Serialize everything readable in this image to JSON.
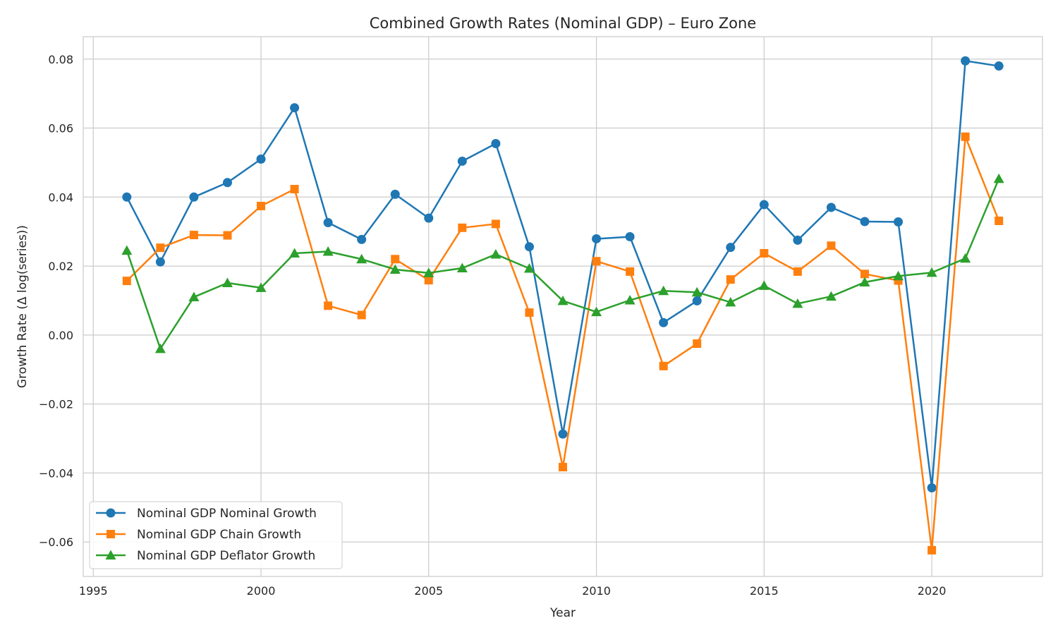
{
  "chart_data": {
    "type": "line",
    "title": "Combined Growth Rates (Nominal GDP) – Euro Zone",
    "xlabel": "Year",
    "ylabel": "Growth Rate (Δ log(series))",
    "xlim": [
      1994.7,
      2023.3
    ],
    "ylim": [
      -0.07,
      0.0865
    ],
    "xticks": [
      1995,
      2000,
      2005,
      2010,
      2015,
      2020
    ],
    "yticks": [
      -0.06,
      -0.04,
      -0.02,
      0.0,
      0.02,
      0.04,
      0.06,
      0.08
    ],
    "ytick_labels": [
      "−0.06",
      "−0.04",
      "−0.02",
      "0.00",
      "0.02",
      "0.04",
      "0.06",
      "0.08"
    ],
    "grid": true,
    "legend_position": "lower-left",
    "x": [
      1996,
      1997,
      1998,
      1999,
      2000,
      2001,
      2002,
      2003,
      2004,
      2005,
      2006,
      2007,
      2008,
      2009,
      2010,
      2011,
      2012,
      2013,
      2014,
      2015,
      2016,
      2017,
      2018,
      2019,
      2020,
      2021,
      2022
    ],
    "series": [
      {
        "name": "Nominal GDP Nominal Growth",
        "color": "#1f77b4",
        "marker": "circle",
        "values": [
          0.04,
          0.0212,
          0.04,
          0.0442,
          0.051,
          0.0659,
          0.0326,
          0.0277,
          0.0408,
          0.0339,
          0.0504,
          0.0555,
          0.0256,
          -0.0287,
          0.0279,
          0.0285,
          0.0036,
          0.0099,
          0.0254,
          0.0378,
          0.0275,
          0.037,
          0.0329,
          0.0328,
          -0.0443,
          0.0795,
          0.078
        ]
      },
      {
        "name": "Nominal GDP Chain Growth",
        "color": "#ff7f0e",
        "marker": "square",
        "values": [
          0.0157,
          0.0253,
          0.029,
          0.0289,
          0.0374,
          0.0423,
          0.0085,
          0.0058,
          0.022,
          0.0159,
          0.0311,
          0.0322,
          0.0065,
          -0.0383,
          0.0214,
          0.0184,
          -0.009,
          -0.0025,
          0.0161,
          0.0237,
          0.0184,
          0.0259,
          0.0177,
          0.0158,
          -0.0624,
          0.0575,
          0.0331
        ]
      },
      {
        "name": "Nominal GDP Deflator Growth",
        "color": "#2ca02c",
        "marker": "triangle",
        "values": [
          0.0245,
          -0.004,
          0.011,
          0.0151,
          0.0137,
          0.0237,
          0.0242,
          0.022,
          0.019,
          0.018,
          0.0194,
          0.0234,
          0.0193,
          0.0099,
          0.0067,
          0.0101,
          0.0128,
          0.0124,
          0.0095,
          0.0143,
          0.0091,
          0.0112,
          0.0153,
          0.0171,
          0.0181,
          0.0222,
          0.0453
        ]
      }
    ]
  }
}
